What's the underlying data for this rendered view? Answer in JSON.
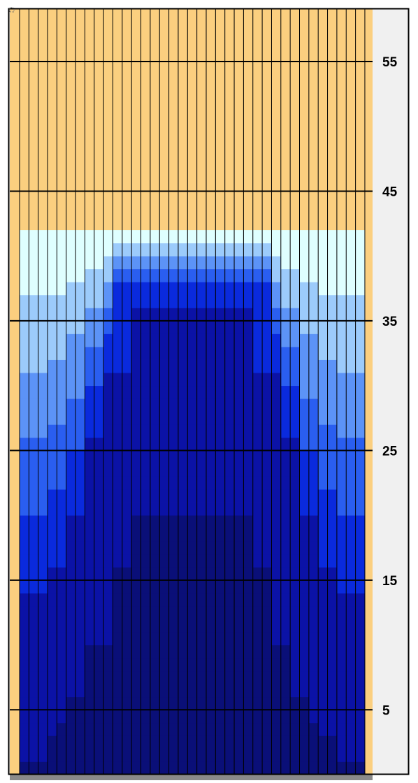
{
  "chart_data": {
    "type": "heatmap",
    "title": "",
    "xlabel": "",
    "ylabel": "",
    "ylim": [
      0,
      60
    ],
    "yticks": [
      5,
      15,
      25,
      35,
      45,
      55
    ],
    "grid": true,
    "column_count": 37,
    "background_color": "#FBCF7F",
    "fill_top": 42,
    "level_colors": [
      "#0A0F78",
      "#0B12A6",
      "#0A2ADD",
      "#2A5EF0",
      "#5C93F7",
      "#9CCBFB",
      "#DFFFFF"
    ],
    "columns": [
      {
        "col": 1,
        "b0": 1,
        "b1": 14,
        "b2": 14
      },
      {
        "col": 2,
        "b0": 1,
        "b1": 14,
        "b2": 14
      },
      {
        "col": 3,
        "b0": 1,
        "b1": 14,
        "b2": 14
      },
      {
        "col": 4,
        "b0": 3,
        "b1": 16,
        "b2": 16
      },
      {
        "col": 5,
        "b0": 4,
        "b1": 16,
        "b2": 16
      },
      {
        "col": 6,
        "b0": 6,
        "b1": 20,
        "b2": 20
      },
      {
        "col": 7,
        "b0": 6,
        "b1": 20,
        "b2": 20
      },
      {
        "col": 8,
        "b0": 10,
        "b1": 26,
        "b2": 26
      },
      {
        "col": 9,
        "b0": 10,
        "b1": 26,
        "b2": 26
      },
      {
        "col": 10,
        "b0": 10,
        "b1": 31,
        "b2": 31
      },
      {
        "col": 11,
        "b0": 16,
        "b1": 31,
        "b2": 36
      },
      {
        "col": 12,
        "b0": 16,
        "b1": 31,
        "b2": 36
      },
      {
        "col": 13,
        "b0": 20,
        "b1": 36,
        "b2": 36
      },
      {
        "col": 14,
        "b0": 20,
        "b1": 36,
        "b2": 36
      },
      {
        "col": 15,
        "b0": 20,
        "b1": 36,
        "b2": 36
      },
      {
        "col": 16,
        "b0": 20,
        "b1": 36,
        "b2": 36
      },
      {
        "col": 17,
        "b0": 20,
        "b1": 36,
        "b2": 36
      },
      {
        "col": 18,
        "b0": 20,
        "b1": 36,
        "b2": 36
      },
      {
        "col": 19,
        "b0": 20,
        "b1": 36,
        "b2": 36
      },
      {
        "col": 20,
        "b0": 20,
        "b1": 36,
        "b2": 36
      },
      {
        "col": 21,
        "b0": 20,
        "b1": 36,
        "b2": 36
      },
      {
        "col": 22,
        "b0": 20,
        "b1": 36,
        "b2": 36
      },
      {
        "col": 23,
        "b0": 20,
        "b1": 36,
        "b2": 36
      },
      {
        "col": 24,
        "b0": 20,
        "b1": 36,
        "b2": 36
      },
      {
        "col": 25,
        "b0": 20,
        "b1": 36,
        "b2": 36
      },
      {
        "col": 26,
        "b0": 16,
        "b1": 31,
        "b2": 36
      },
      {
        "col": 27,
        "b0": 16,
        "b1": 31,
        "b2": 36
      },
      {
        "col": 28,
        "b0": 10,
        "b1": 31,
        "b2": 31
      },
      {
        "col": 29,
        "b0": 10,
        "b1": 26,
        "b2": 26
      },
      {
        "col": 30,
        "b0": 6,
        "b1": 26,
        "b2": 26
      },
      {
        "col": 31,
        "b0": 6,
        "b1": 20,
        "b2": 20
      },
      {
        "col": 32,
        "b0": 4,
        "b1": 20,
        "b2": 20
      },
      {
        "col": 33,
        "b0": 3,
        "b1": 16,
        "b2": 16
      },
      {
        "col": 34,
        "b0": 3,
        "b1": 16,
        "b2": 16
      },
      {
        "col": 35,
        "b0": 1,
        "b1": 14,
        "b2": 14
      },
      {
        "col": 36,
        "b0": 1,
        "b1": 14,
        "b2": 14
      },
      {
        "col": 37,
        "b0": 1,
        "b1": 14,
        "b2": 14
      }
    ],
    "tick_labels": [
      "5",
      "15",
      "25",
      "35",
      "45",
      "55"
    ]
  }
}
